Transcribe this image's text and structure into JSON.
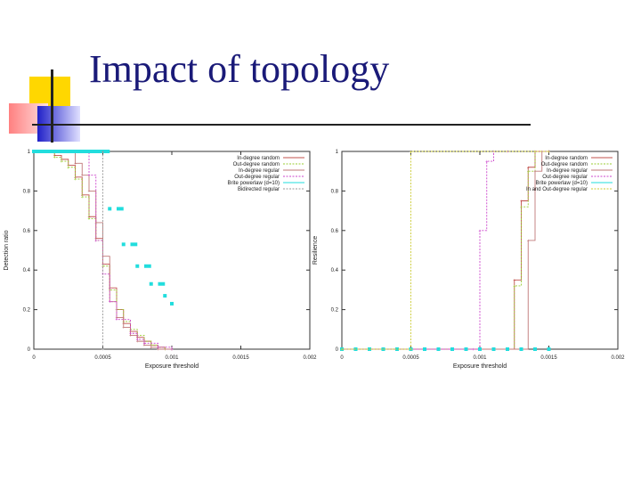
{
  "slide": {
    "title": "Impact of topology"
  },
  "chart_data": [
    {
      "type": "line",
      "title": "",
      "xlabel": "Exposure threshold",
      "ylabel": "Detection ratio",
      "xlim": [
        0,
        0.002
      ],
      "ylim": [
        0,
        1
      ],
      "x_ticks": [
        "0",
        "0.0005",
        "0.001",
        "0.0015",
        "0.002"
      ],
      "y_ticks": [
        "0",
        "0.2",
        "0.4",
        "0.6",
        "0.8",
        "1"
      ],
      "grid": false,
      "legend": "top-right",
      "series": [
        {
          "name": "In-degree random",
          "color": "#c0504d",
          "x": [
            0,
            0.0001,
            0.00015,
            0.0002,
            0.00025,
            0.0003,
            0.00035,
            0.0004,
            0.00045,
            0.0005,
            0.00055,
            0.0006,
            0.00065,
            0.0007,
            0.00075,
            0.0008,
            0.00085,
            0.0009,
            0.00095,
            0.001
          ],
          "y": [
            1,
            1,
            0.98,
            0.96,
            0.93,
            0.87,
            0.78,
            0.67,
            0.56,
            0.43,
            0.31,
            0.2,
            0.13,
            0.09,
            0.06,
            0.04,
            0.02,
            0.01,
            0,
            0
          ]
        },
        {
          "name": "Out-degree random",
          "color": "#9acd32",
          "x": [
            0,
            0.0001,
            0.00015,
            0.0002,
            0.00025,
            0.0003,
            0.00035,
            0.0004,
            0.00045,
            0.0005,
            0.00055,
            0.0006,
            0.00065,
            0.0007,
            0.00075,
            0.0008,
            0.00085,
            0.0009,
            0.00095,
            0.001
          ],
          "y": [
            1,
            1,
            0.97,
            0.95,
            0.92,
            0.86,
            0.77,
            0.66,
            0.55,
            0.42,
            0.3,
            0.2,
            0.14,
            0.1,
            0.07,
            0.04,
            0.02,
            0.01,
            0,
            0
          ]
        },
        {
          "name": "In-degree regular",
          "color": "#c07878",
          "x": [
            0,
            0.0003,
            0.00035,
            0.0004,
            0.00045,
            0.0005,
            0.00055,
            0.0006,
            0.00065,
            0.0007,
            0.00075,
            0.0008,
            0.00085,
            0.0009,
            0.001
          ],
          "y": [
            1,
            0.94,
            0.88,
            0.8,
            0.64,
            0.47,
            0.24,
            0.16,
            0.11,
            0.07,
            0.04,
            0.02,
            0.01,
            0,
            0
          ]
        },
        {
          "name": "Out-degree regular",
          "color": "#cc44cc",
          "x": [
            0,
            0.0003,
            0.0004,
            0.00045,
            0.0005,
            0.00055,
            0.0006,
            0.0007,
            0.00075,
            0.0008,
            0.0009,
            0.001
          ],
          "y": [
            1,
            1,
            0.88,
            0.55,
            0.38,
            0.24,
            0.15,
            0.08,
            0.05,
            0.03,
            0.01,
            0
          ]
        },
        {
          "name": "Brite powerlaw (d=10)",
          "color": "#22dddd",
          "x": [
            0,
            0.0005,
            0.00055,
            0.0006,
            0.00065,
            0.0007,
            0.00075,
            0.0008,
            0.00085,
            0.0009,
            0.00095,
            0.001
          ],
          "y": [
            1,
            1,
            0.71,
            0.71,
            0.53,
            0.53,
            0.42,
            0.42,
            0.33,
            0.33,
            0.27,
            0.23
          ]
        },
        {
          "name": "Bidirected regular",
          "color": "#999999",
          "x": [
            0.0005,
            0.0005
          ],
          "y": [
            1,
            0
          ]
        }
      ]
    },
    {
      "type": "line",
      "title": "",
      "xlabel": "Exposure threshold",
      "ylabel": "Resilience",
      "xlim": [
        0,
        0.002
      ],
      "ylim": [
        0,
        1
      ],
      "x_ticks": [
        "0",
        "0.0005",
        "0.001",
        "0.0015",
        "0.002"
      ],
      "y_ticks": [
        "0",
        "0.2",
        "0.4",
        "0.6",
        "0.8",
        "1"
      ],
      "grid": false,
      "legend": "top-right",
      "series": [
        {
          "name": "In-degree random",
          "color": "#c0504d",
          "x": [
            0,
            0.0012,
            0.00125,
            0.0013,
            0.00135,
            0.0014,
            0.0015
          ],
          "y": [
            0,
            0,
            0.35,
            0.75,
            0.92,
            1,
            1
          ]
        },
        {
          "name": "Out-degree random",
          "color": "#9acd32",
          "x": [
            0,
            0.0012,
            0.00125,
            0.0013,
            0.00135,
            0.0014,
            0.0015
          ],
          "y": [
            0,
            0,
            0.32,
            0.72,
            0.9,
            1,
            1
          ]
        },
        {
          "name": "In-degree regular",
          "color": "#c07878",
          "x": [
            0,
            0.0013,
            0.00135,
            0.0014,
            0.00145,
            0.0015
          ],
          "y": [
            0,
            0,
            0.55,
            0.9,
            1,
            1
          ]
        },
        {
          "name": "Out-degree regular",
          "color": "#cc44cc",
          "x": [
            0,
            0.00095,
            0.001,
            0.00105,
            0.0011,
            0.0012,
            0.0015
          ],
          "y": [
            0,
            0,
            0.6,
            0.95,
            1,
            1,
            1
          ]
        },
        {
          "name": "Brite powerlaw (d=10)",
          "color": "#22dddd",
          "x": [
            0,
            0.0001,
            0.0002,
            0.0003,
            0.0004,
            0.0005,
            0.0006,
            0.0007,
            0.0008,
            0.0009,
            0.001,
            0.0011,
            0.0012,
            0.0013,
            0.0014,
            0.0015
          ],
          "y": [
            0,
            0,
            0,
            0,
            0,
            0,
            0,
            0,
            0,
            0,
            0,
            0,
            0,
            0,
            0,
            0
          ]
        },
        {
          "name": "In and Out-degree regular",
          "color": "#cccc33",
          "x": [
            0,
            0.0005,
            0.0005,
            0.0015
          ],
          "y": [
            0,
            0,
            1,
            1
          ]
        }
      ]
    }
  ]
}
